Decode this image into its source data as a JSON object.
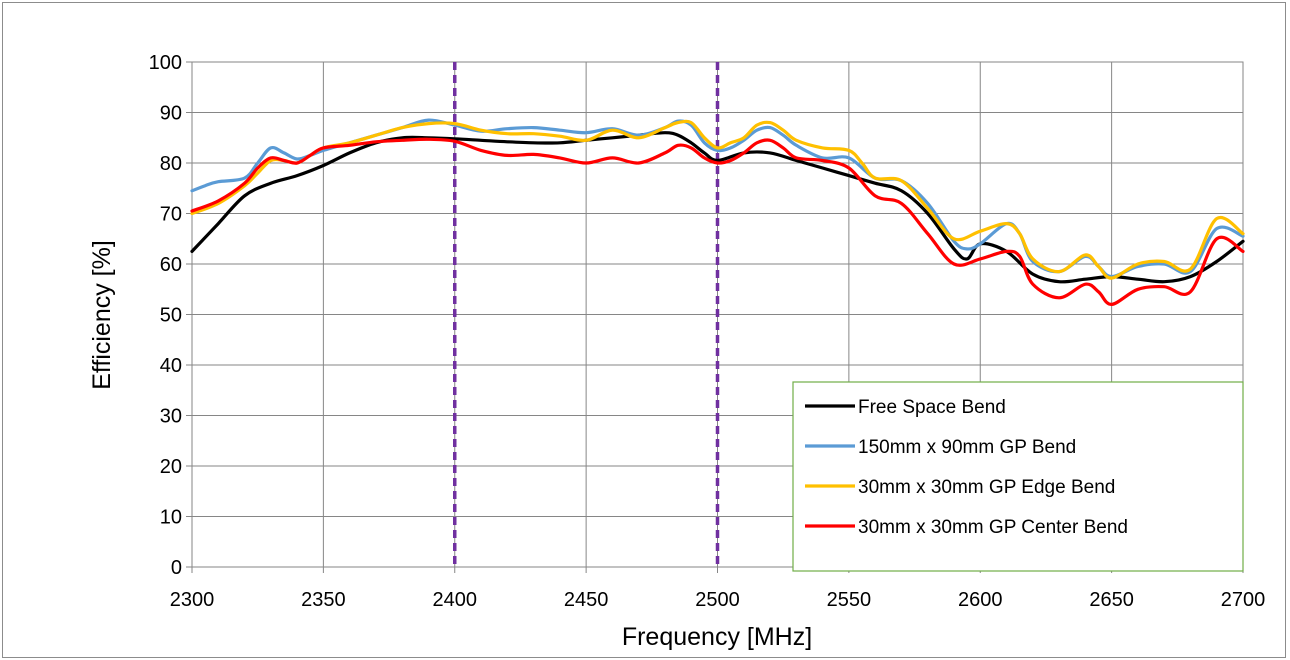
{
  "chart_data": {
    "type": "line",
    "title": "",
    "xlabel": "Frequency [MHz]",
    "ylabel": "Efficiency [%]",
    "xlim": [
      2300,
      2700
    ],
    "ylim": [
      0,
      100
    ],
    "x_ticks": [
      2300,
      2350,
      2400,
      2450,
      2500,
      2550,
      2600,
      2650,
      2700
    ],
    "y_ticks": [
      0,
      10,
      20,
      30,
      40,
      50,
      60,
      70,
      80,
      90,
      100
    ],
    "grid": true,
    "legend_position": "bottom-right",
    "reference_lines": [
      {
        "x": 2400,
        "color": "#7030a0",
        "style": "dashed"
      },
      {
        "x": 2500,
        "color": "#7030a0",
        "style": "dashed"
      }
    ],
    "series": [
      {
        "name": "Free Space Bend",
        "color": "#000000",
        "points": [
          [
            2300,
            62.5
          ],
          [
            2310,
            68
          ],
          [
            2320,
            73.5
          ],
          [
            2330,
            76
          ],
          [
            2340,
            77.5
          ],
          [
            2350,
            79.5
          ],
          [
            2360,
            82
          ],
          [
            2370,
            84
          ],
          [
            2380,
            85
          ],
          [
            2390,
            85
          ],
          [
            2400,
            84.8
          ],
          [
            2410,
            84.5
          ],
          [
            2420,
            84.2
          ],
          [
            2430,
            84
          ],
          [
            2440,
            84
          ],
          [
            2450,
            84.5
          ],
          [
            2460,
            85
          ],
          [
            2470,
            85.5
          ],
          [
            2480,
            86
          ],
          [
            2485,
            85.5
          ],
          [
            2490,
            84
          ],
          [
            2495,
            82
          ],
          [
            2500,
            80.5
          ],
          [
            2510,
            82
          ],
          [
            2520,
            82
          ],
          [
            2530,
            80.5
          ],
          [
            2540,
            79
          ],
          [
            2550,
            77.5
          ],
          [
            2560,
            76
          ],
          [
            2570,
            74.5
          ],
          [
            2580,
            70
          ],
          [
            2590,
            63
          ],
          [
            2595,
            61
          ],
          [
            2600,
            64
          ],
          [
            2610,
            62.5
          ],
          [
            2620,
            58
          ],
          [
            2630,
            56.5
          ],
          [
            2640,
            57
          ],
          [
            2650,
            57.5
          ],
          [
            2660,
            57
          ],
          [
            2670,
            56.5
          ],
          [
            2680,
            57.5
          ],
          [
            2690,
            60.5
          ],
          [
            2700,
            64.5
          ]
        ]
      },
      {
        "name": "150mm x 90mm GP Bend",
        "color": "#5b9bd5",
        "points": [
          [
            2300,
            74.5
          ],
          [
            2305,
            75.5
          ],
          [
            2310,
            76.3
          ],
          [
            2320,
            77
          ],
          [
            2325,
            80
          ],
          [
            2330,
            83
          ],
          [
            2335,
            82
          ],
          [
            2340,
            80.8
          ],
          [
            2345,
            81.5
          ],
          [
            2350,
            82.5
          ],
          [
            2360,
            84
          ],
          [
            2370,
            85.5
          ],
          [
            2380,
            87
          ],
          [
            2390,
            88.5
          ],
          [
            2400,
            87.5
          ],
          [
            2410,
            86.3
          ],
          [
            2420,
            86.8
          ],
          [
            2430,
            87
          ],
          [
            2440,
            86.5
          ],
          [
            2450,
            86
          ],
          [
            2460,
            86.8
          ],
          [
            2470,
            85.5
          ],
          [
            2480,
            87
          ],
          [
            2485,
            88.3
          ],
          [
            2490,
            87.5
          ],
          [
            2495,
            84
          ],
          [
            2500,
            82.5
          ],
          [
            2505,
            83
          ],
          [
            2510,
            84.5
          ],
          [
            2515,
            86.5
          ],
          [
            2520,
            87
          ],
          [
            2525,
            85.5
          ],
          [
            2530,
            83.5
          ],
          [
            2540,
            81
          ],
          [
            2550,
            81
          ],
          [
            2560,
            77
          ],
          [
            2570,
            76.5
          ],
          [
            2580,
            72
          ],
          [
            2590,
            64.5
          ],
          [
            2595,
            63
          ],
          [
            2600,
            64
          ],
          [
            2610,
            68
          ],
          [
            2615,
            66
          ],
          [
            2620,
            60.5
          ],
          [
            2630,
            58.5
          ],
          [
            2640,
            61.5
          ],
          [
            2645,
            59.5
          ],
          [
            2650,
            57.5
          ],
          [
            2660,
            59.5
          ],
          [
            2670,
            60
          ],
          [
            2680,
            58.5
          ],
          [
            2690,
            67
          ],
          [
            2700,
            65.5
          ]
        ]
      },
      {
        "name": "30mm x 30mm GP Edge Bend",
        "color": "#ffc000",
        "points": [
          [
            2300,
            70
          ],
          [
            2310,
            72
          ],
          [
            2320,
            75.5
          ],
          [
            2325,
            78
          ],
          [
            2330,
            80.5
          ],
          [
            2335,
            80.5
          ],
          [
            2340,
            80
          ],
          [
            2345,
            81.5
          ],
          [
            2350,
            83
          ],
          [
            2360,
            84
          ],
          [
            2370,
            85.5
          ],
          [
            2380,
            87
          ],
          [
            2390,
            87.8
          ],
          [
            2400,
            87.8
          ],
          [
            2410,
            86.5
          ],
          [
            2420,
            85.8
          ],
          [
            2430,
            85.8
          ],
          [
            2440,
            85.3
          ],
          [
            2450,
            84.5
          ],
          [
            2460,
            86.5
          ],
          [
            2470,
            85
          ],
          [
            2480,
            87
          ],
          [
            2485,
            88
          ],
          [
            2490,
            88
          ],
          [
            2495,
            85
          ],
          [
            2500,
            83
          ],
          [
            2505,
            84
          ],
          [
            2510,
            85
          ],
          [
            2515,
            87.5
          ],
          [
            2520,
            88
          ],
          [
            2525,
            86.5
          ],
          [
            2530,
            84.5
          ],
          [
            2540,
            83
          ],
          [
            2550,
            82.5
          ],
          [
            2555,
            80
          ],
          [
            2560,
            77
          ],
          [
            2570,
            76.5
          ],
          [
            2580,
            71
          ],
          [
            2590,
            65
          ],
          [
            2600,
            66.5
          ],
          [
            2610,
            68
          ],
          [
            2615,
            66
          ],
          [
            2620,
            61
          ],
          [
            2630,
            58.5
          ],
          [
            2640,
            61.8
          ],
          [
            2645,
            59.5
          ],
          [
            2650,
            57.2
          ],
          [
            2660,
            60
          ],
          [
            2670,
            60.5
          ],
          [
            2680,
            59
          ],
          [
            2690,
            69
          ],
          [
            2700,
            66
          ]
        ]
      },
      {
        "name": "30mm x 30mm GP Center Bend",
        "color": "#ff0000",
        "points": [
          [
            2300,
            70.5
          ],
          [
            2310,
            72.5
          ],
          [
            2320,
            76
          ],
          [
            2325,
            79
          ],
          [
            2330,
            81
          ],
          [
            2335,
            80.5
          ],
          [
            2340,
            80
          ],
          [
            2345,
            81.5
          ],
          [
            2350,
            83
          ],
          [
            2360,
            83.5
          ],
          [
            2370,
            84.2
          ],
          [
            2380,
            84.5
          ],
          [
            2390,
            84.7
          ],
          [
            2400,
            84.3
          ],
          [
            2410,
            82.5
          ],
          [
            2420,
            81.5
          ],
          [
            2430,
            81.7
          ],
          [
            2440,
            81
          ],
          [
            2450,
            80
          ],
          [
            2460,
            81
          ],
          [
            2470,
            80
          ],
          [
            2480,
            82
          ],
          [
            2485,
            83.5
          ],
          [
            2490,
            83
          ],
          [
            2495,
            81
          ],
          [
            2500,
            80
          ],
          [
            2505,
            80.5
          ],
          [
            2510,
            82
          ],
          [
            2515,
            84
          ],
          [
            2520,
            84.5
          ],
          [
            2525,
            83
          ],
          [
            2530,
            81
          ],
          [
            2540,
            80.5
          ],
          [
            2550,
            79
          ],
          [
            2560,
            73.5
          ],
          [
            2570,
            72
          ],
          [
            2580,
            66
          ],
          [
            2590,
            60
          ],
          [
            2600,
            61
          ],
          [
            2610,
            62.5
          ],
          [
            2615,
            61.5
          ],
          [
            2620,
            56
          ],
          [
            2630,
            53.3
          ],
          [
            2640,
            56
          ],
          [
            2645,
            54.5
          ],
          [
            2650,
            52
          ],
          [
            2660,
            55
          ],
          [
            2670,
            55.5
          ],
          [
            2680,
            54.5
          ],
          [
            2690,
            65
          ],
          [
            2700,
            62.5
          ]
        ]
      }
    ]
  }
}
